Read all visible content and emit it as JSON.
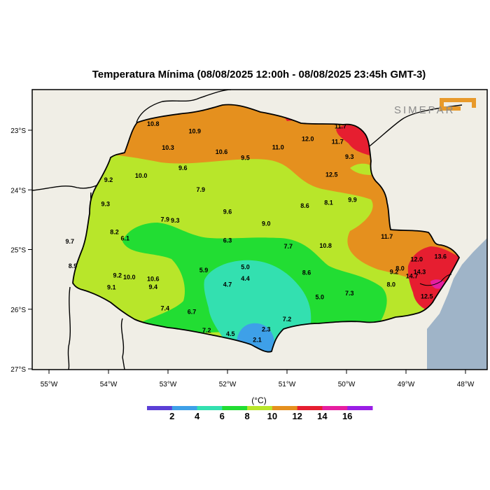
{
  "title": "Temperatura Mínima (08/08/2025 12:00h - 08/08/2025 23:45h GMT-3)",
  "logo_text": "SIMEPAR",
  "colors": {
    "land": "#f0eee6",
    "ocean": "#9fb4c8",
    "c0": "#5b3fd6",
    "c2": "#3ea0e8",
    "c4": "#33e0b0",
    "c6": "#22dd33",
    "c8": "#b8e62a",
    "c10": "#e5901e",
    "c12": "#e61e30",
    "c14": "#e61ea0",
    "c16": "#9a1ee6",
    "logo": "#e89a2a"
  },
  "lon_labels": [
    "55°W",
    "54°W",
    "53°W",
    "52°W",
    "51°W",
    "50°W",
    "49°W",
    "48°W"
  ],
  "lat_labels": [
    "23°S",
    "24°S",
    "25°S",
    "26°S",
    "27°S"
  ],
  "colorbar": {
    "unit": "(°C)",
    "labels": [
      "2",
      "4",
      "6",
      "8",
      "10",
      "12",
      "14",
      "16"
    ]
  },
  "stations": [
    {
      "v": "10.8",
      "lon": -53.25,
      "lat": -22.93
    },
    {
      "v": "10.9",
      "lon": -52.55,
      "lat": -23.05
    },
    {
      "v": "10.3",
      "lon": -53.0,
      "lat": -23.33
    },
    {
      "v": "10.6",
      "lon": -52.1,
      "lat": -23.4
    },
    {
      "v": "9.5",
      "lon": -51.7,
      "lat": -23.5
    },
    {
      "v": "11.0",
      "lon": -51.15,
      "lat": -23.32
    },
    {
      "v": "12.0",
      "lon": -50.65,
      "lat": -23.18
    },
    {
      "v": "11.7",
      "lon": -50.15,
      "lat": -23.23
    },
    {
      "v": "11.7",
      "lon": -50.1,
      "lat": -22.97
    },
    {
      "v": "9.3",
      "lon": -49.95,
      "lat": -23.48
    },
    {
      "v": "12.5",
      "lon": -50.25,
      "lat": -23.78
    },
    {
      "v": "10.0",
      "lon": -53.45,
      "lat": -23.8
    },
    {
      "v": "9.6",
      "lon": -52.75,
      "lat": -23.67
    },
    {
      "v": "9.2",
      "lon": -54.0,
      "lat": -23.87
    },
    {
      "v": "7.9",
      "lon": -52.45,
      "lat": -24.03
    },
    {
      "v": "9.3",
      "lon": -54.05,
      "lat": -24.27
    },
    {
      "v": "9.6",
      "lon": -52.0,
      "lat": -24.4
    },
    {
      "v": "8.6",
      "lon": -50.7,
      "lat": -24.3
    },
    {
      "v": "8.1",
      "lon": -50.3,
      "lat": -24.25
    },
    {
      "v": "9.9",
      "lon": -49.9,
      "lat": -24.2
    },
    {
      "v": "9.0",
      "lon": -51.35,
      "lat": -24.6
    },
    {
      "v": "7.9",
      "lon": -53.05,
      "lat": -24.53
    },
    {
      "v": "9.3",
      "lon": -52.88,
      "lat": -24.55
    },
    {
      "v": "8.2",
      "lon": -53.9,
      "lat": -24.74
    },
    {
      "v": "6.1",
      "lon": -53.72,
      "lat": -24.85
    },
    {
      "v": "9.7",
      "lon": -54.65,
      "lat": -24.9
    },
    {
      "v": "6.3",
      "lon": -52.0,
      "lat": -24.88
    },
    {
      "v": "7.7",
      "lon": -50.98,
      "lat": -24.98
    },
    {
      "v": "10.8",
      "lon": -50.35,
      "lat": -24.97
    },
    {
      "v": "11.7",
      "lon": -49.32,
      "lat": -24.82
    },
    {
      "v": "8.9",
      "lon": -54.6,
      "lat": -25.31
    },
    {
      "v": "5.0",
      "lon": -51.7,
      "lat": -25.33
    },
    {
      "v": "5.9",
      "lon": -52.4,
      "lat": -25.38
    },
    {
      "v": "4.4",
      "lon": -51.7,
      "lat": -25.52
    },
    {
      "v": "4.7",
      "lon": -52.0,
      "lat": -25.62
    },
    {
      "v": "8.6",
      "lon": -50.67,
      "lat": -25.42
    },
    {
      "v": "9.2",
      "lon": -53.85,
      "lat": -25.47
    },
    {
      "v": "10.0",
      "lon": -53.65,
      "lat": -25.5
    },
    {
      "v": "10.6",
      "lon": -53.25,
      "lat": -25.53
    },
    {
      "v": "9.1",
      "lon": -53.95,
      "lat": -25.67
    },
    {
      "v": "9.4",
      "lon": -53.25,
      "lat": -25.66
    },
    {
      "v": "12.0",
      "lon": -48.82,
      "lat": -25.2
    },
    {
      "v": "13.6",
      "lon": -48.42,
      "lat": -25.15
    },
    {
      "v": "8.0",
      "lon": -49.1,
      "lat": -25.35
    },
    {
      "v": "9.2",
      "lon": -49.2,
      "lat": -25.41
    },
    {
      "v": "14.3",
      "lon": -48.77,
      "lat": -25.41
    },
    {
      "v": "14.7",
      "lon": -48.9,
      "lat": -25.48
    },
    {
      "v": "8.0",
      "lon": -49.25,
      "lat": -25.62
    },
    {
      "v": "7.3",
      "lon": -49.95,
      "lat": -25.77
    },
    {
      "v": "5.0",
      "lon": -50.45,
      "lat": -25.83
    },
    {
      "v": "12.5",
      "lon": -48.65,
      "lat": -25.82
    },
    {
      "v": "7.4",
      "lon": -53.05,
      "lat": -26.02
    },
    {
      "v": "6.7",
      "lon": -52.6,
      "lat": -26.08
    },
    {
      "v": "7.2",
      "lon": -51.0,
      "lat": -26.2
    },
    {
      "v": "2.3",
      "lon": -51.35,
      "lat": -26.37
    },
    {
      "v": "7.2",
      "lon": -52.35,
      "lat": -26.39
    },
    {
      "v": "4.5",
      "lon": -51.95,
      "lat": -26.45
    },
    {
      "v": "2.1",
      "lon": -51.5,
      "lat": -26.55
    }
  ]
}
